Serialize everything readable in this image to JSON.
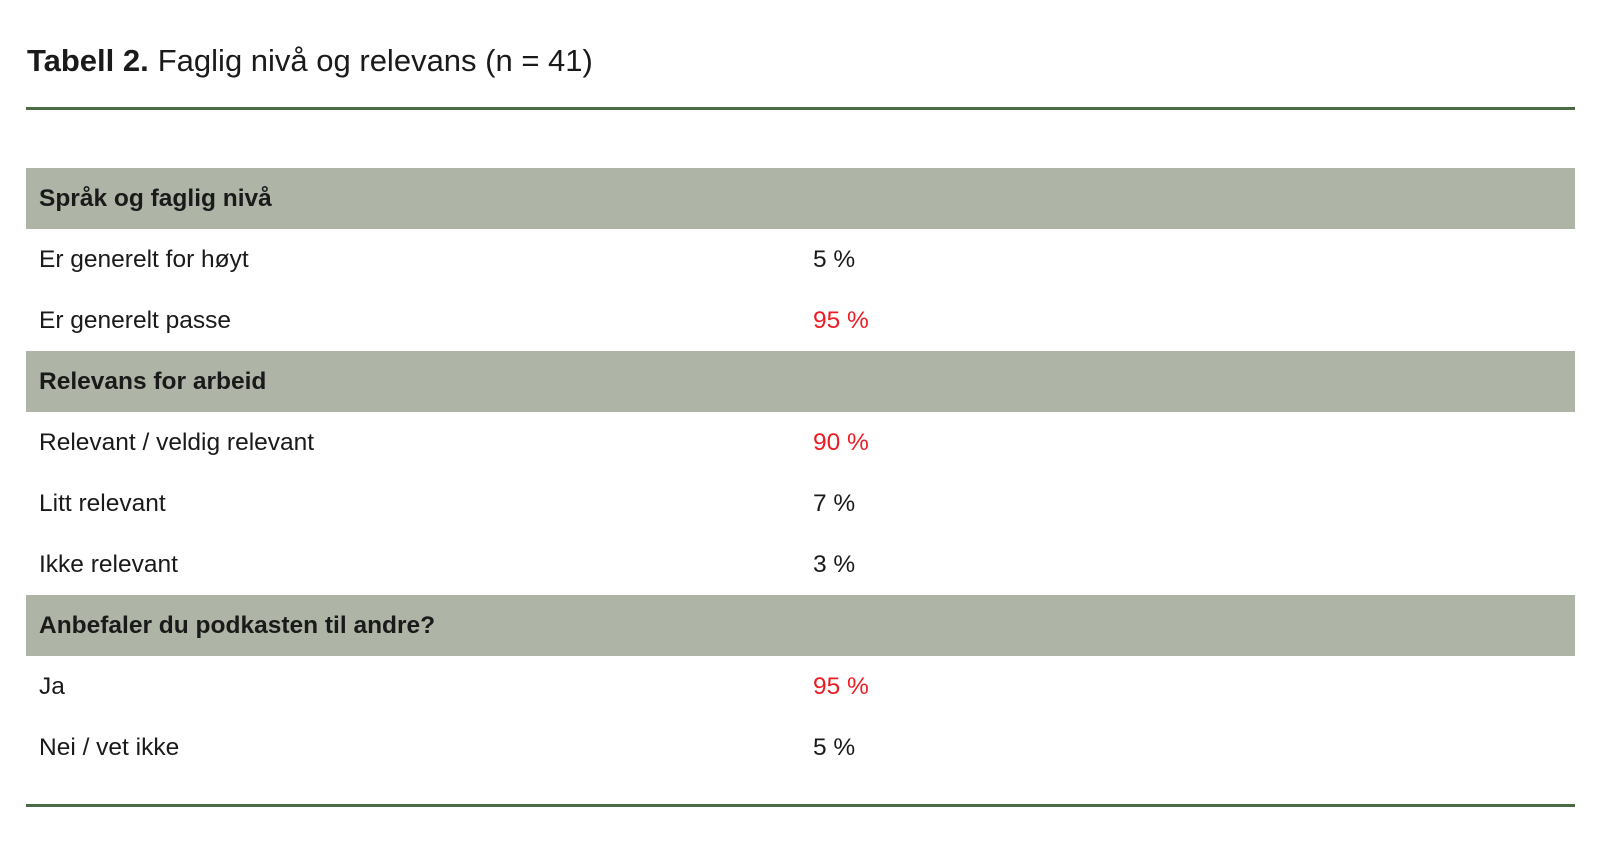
{
  "title": {
    "label": "Tabell 2.",
    "text": "Faglig nivå og relevans (n = 41)"
  },
  "colors": {
    "band_bg": "#aeb4a6",
    "rule_green": "#4b6b44",
    "value_red": "#ed1c24",
    "text": "#1a1a1a"
  },
  "table": {
    "sections": [
      {
        "header": "Språk og faglig nivå",
        "rows": [
          {
            "label": "Er generelt for høyt",
            "value": "5 %",
            "highlight": false
          },
          {
            "label": "Er generelt passe",
            "value": "95 %",
            "highlight": true
          }
        ]
      },
      {
        "header": "Relevans for arbeid",
        "rows": [
          {
            "label": "Relevant / veldig relevant",
            "value": "90 %",
            "highlight": true
          },
          {
            "label": "Litt relevant",
            "value": "7 %",
            "highlight": false
          },
          {
            "label": "Ikke relevant",
            "value": "3 %",
            "highlight": false
          }
        ]
      },
      {
        "header": "Anbefaler du podkasten til andre?",
        "rows": [
          {
            "label": "Ja",
            "value": "95 %",
            "highlight": true
          },
          {
            "label": "Nei / vet ikke",
            "value": "5 %",
            "highlight": false
          }
        ]
      }
    ]
  }
}
